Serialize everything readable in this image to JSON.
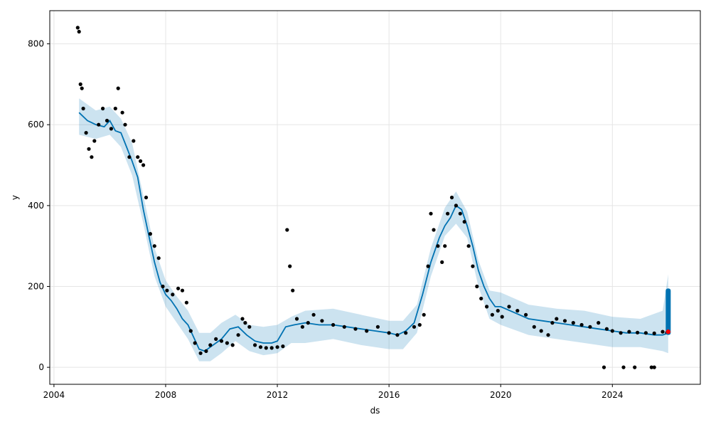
{
  "chart_data": {
    "type": "line",
    "title": "",
    "xlabel": "ds",
    "ylabel": "y",
    "xlim": [
      2003.85,
      2027.15
    ],
    "ylim": [
      -42,
      882
    ],
    "grid": true,
    "x_ticks": [
      2004,
      2008,
      2012,
      2016,
      2020,
      2024
    ],
    "x_tick_labels": [
      "2004",
      "2008",
      "2012",
      "2016",
      "2020",
      "2024"
    ],
    "y_ticks": [
      0,
      200,
      400,
      600,
      800
    ],
    "y_tick_labels": [
      "0",
      "200",
      "400",
      "600",
      "800"
    ],
    "colors": {
      "points": "#000000",
      "forecast_line": "#0072b2",
      "uncertainty_band": "#0072b2",
      "highlight_point": "#ff0000",
      "grid": "#e5e5e5"
    },
    "series": [
      {
        "type": "uncertainty_band",
        "x": [
          2004.9,
          2005.5,
          2006.0,
          2006.4,
          2006.8,
          2007.2,
          2007.6,
          2008.0,
          2008.4,
          2008.8,
          2009.2,
          2009.6,
          2010.0,
          2010.5,
          2011.0,
          2011.5,
          2012.0,
          2012.5,
          2013.0,
          2014.0,
          2015.0,
          2016.0,
          2016.5,
          2017.0,
          2017.5,
          2018.0,
          2018.4,
          2018.8,
          2019.2,
          2019.6,
          2020.0,
          2021.0,
          2022.0,
          2023.0,
          2024.0,
          2025.0,
          2025.8,
          2026.0
        ],
        "lower": [
          575,
          565,
          575,
          545,
          475,
          355,
          225,
          150,
          110,
          70,
          15,
          15,
          35,
          65,
          40,
          30,
          35,
          60,
          60,
          70,
          55,
          45,
          45,
          85,
          225,
          325,
          355,
          320,
          200,
          120,
          105,
          80,
          70,
          60,
          50,
          50,
          40,
          35
        ],
        "upper": [
          665,
          635,
          645,
          615,
          555,
          425,
          295,
          215,
          175,
          140,
          85,
          85,
          110,
          130,
          105,
          100,
          105,
          125,
          140,
          145,
          130,
          115,
          115,
          155,
          295,
          395,
          435,
          385,
          265,
          190,
          185,
          155,
          145,
          140,
          125,
          120,
          140,
          230
        ]
      },
      {
        "type": "forecast",
        "name": "",
        "x": [
          2004.9,
          2005.2,
          2005.5,
          2005.8,
          2006.0,
          2006.2,
          2006.4,
          2006.6,
          2006.8,
          2007.0,
          2007.2,
          2007.4,
          2007.6,
          2007.8,
          2008.0,
          2008.2,
          2008.4,
          2008.6,
          2008.8,
          2009.0,
          2009.2,
          2009.4,
          2009.6,
          2009.8,
          2010.0,
          2010.3,
          2010.6,
          2010.9,
          2011.2,
          2011.5,
          2011.8,
          2012.0,
          2012.3,
          2012.6,
          2013.0,
          2013.5,
          2014.0,
          2014.5,
          2015.0,
          2015.5,
          2016.0,
          2016.3,
          2016.6,
          2016.9,
          2017.2,
          2017.5,
          2017.8,
          2018.0,
          2018.2,
          2018.4,
          2018.6,
          2018.8,
          2019.0,
          2019.2,
          2019.4,
          2019.6,
          2019.8,
          2020.0,
          2020.5,
          2021.0,
          2021.5,
          2022.0,
          2022.5,
          2023.0,
          2023.5,
          2024.0,
          2024.5,
          2025.0,
          2025.5,
          2025.8,
          2026.0
        ],
        "values": [
          630,
          610,
          600,
          595,
          610,
          585,
          580,
          545,
          510,
          470,
          390,
          325,
          260,
          210,
          180,
          165,
          145,
          120,
          105,
          75,
          45,
          40,
          50,
          60,
          70,
          95,
          100,
          80,
          65,
          60,
          60,
          65,
          100,
          105,
          110,
          105,
          105,
          100,
          95,
          90,
          85,
          80,
          90,
          110,
          180,
          260,
          320,
          350,
          370,
          400,
          390,
          350,
          300,
          240,
          200,
          170,
          150,
          150,
          135,
          120,
          115,
          110,
          105,
          100,
          95,
          90,
          85,
          85,
          80,
          80,
          85
        ]
      },
      {
        "type": "observed",
        "name": "",
        "x": [
          2004.85,
          2004.9,
          2004.95,
          2005.0,
          2005.05,
          2005.15,
          2005.25,
          2005.35,
          2005.45,
          2005.6,
          2005.75,
          2005.9,
          2006.05,
          2006.2,
          2006.3,
          2006.45,
          2006.55,
          2006.7,
          2006.85,
          2007.0,
          2007.1,
          2007.2,
          2007.3,
          2007.45,
          2007.6,
          2007.75,
          2007.9,
          2008.05,
          2008.25,
          2008.45,
          2008.6,
          2008.75,
          2008.9,
          2009.05,
          2009.25,
          2009.45,
          2009.6,
          2009.8,
          2010.0,
          2010.2,
          2010.4,
          2010.6,
          2010.75,
          2010.85,
          2011.0,
          2011.2,
          2011.4,
          2011.6,
          2011.8,
          2012.0,
          2012.2,
          2012.35,
          2012.45,
          2012.55,
          2012.7,
          2012.9,
          2013.1,
          2013.3,
          2013.6,
          2014.0,
          2014.4,
          2014.8,
          2015.2,
          2015.6,
          2016.0,
          2016.3,
          2016.6,
          2016.9,
          2017.1,
          2017.25,
          2017.4,
          2017.5,
          2017.6,
          2017.75,
          2017.9,
          2018.0,
          2018.1,
          2018.25,
          2018.4,
          2018.55,
          2018.7,
          2018.85,
          2019.0,
          2019.15,
          2019.3,
          2019.5,
          2019.7,
          2019.9,
          2020.05,
          2020.3,
          2020.6,
          2020.9,
          2021.2,
          2021.45,
          2021.7,
          2021.85,
          2022.0,
          2022.3,
          2022.6,
          2022.9,
          2023.2,
          2023.5,
          2023.8,
          2024.0,
          2024.3,
          2024.6,
          2024.9,
          2025.2,
          2025.5,
          2025.8,
          2025.95
        ],
        "values": [
          840,
          830,
          700,
          690,
          640,
          580,
          540,
          520,
          560,
          600,
          640,
          610,
          590,
          640,
          690,
          630,
          600,
          520,
          560,
          520,
          510,
          500,
          420,
          330,
          300,
          270,
          200,
          190,
          180,
          195,
          190,
          160,
          90,
          60,
          35,
          40,
          55,
          70,
          65,
          60,
          55,
          80,
          120,
          110,
          100,
          55,
          50,
          48,
          48,
          50,
          52,
          340,
          250,
          190,
          120,
          100,
          110,
          130,
          115,
          105,
          100,
          95,
          90,
          100,
          85,
          80,
          85,
          100,
          105,
          130,
          250,
          380,
          340,
          300,
          260,
          300,
          380,
          420,
          400,
          380,
          360,
          300,
          250,
          200,
          170,
          150,
          130,
          140,
          125,
          150,
          140,
          130,
          100,
          90,
          80,
          110,
          120,
          115,
          110,
          105,
          100,
          110,
          95,
          90,
          85,
          88,
          86,
          85,
          84,
          88,
          86
        ]
      },
      {
        "type": "outliers",
        "name": "",
        "x": [
          2023.7,
          2024.4,
          2024.8,
          2025.4,
          2025.5
        ],
        "values": [
          0,
          0,
          0,
          0,
          0
        ]
      },
      {
        "type": "forecast_column",
        "name": "",
        "x": [
          2026.0
        ],
        "lower": [
          80
        ],
        "upper": [
          195
        ]
      },
      {
        "type": "highlight",
        "name": "",
        "x": [
          2026.0
        ],
        "values": [
          88
        ]
      }
    ]
  }
}
